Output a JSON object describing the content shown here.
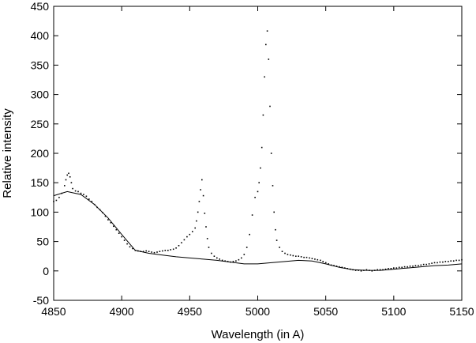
{
  "chart_data": {
    "type": "scatter",
    "title": "",
    "xlabel": "Wavelength (in A)",
    "ylabel": "Relative intensity",
    "xlim": [
      4850,
      5150
    ],
    "ylim": [
      -50,
      450
    ],
    "xticks": [
      4850,
      4900,
      4950,
      5000,
      5050,
      5100,
      5150
    ],
    "yticks": [
      -50,
      0,
      50,
      100,
      150,
      200,
      250,
      300,
      350,
      400,
      450
    ],
    "grid": false,
    "legend": "none",
    "series": [
      {
        "kind": "points",
        "color": "#000000",
        "points": [
          [
            4850,
            118
          ],
          [
            4852,
            120
          ],
          [
            4854,
            125
          ],
          [
            4856,
            132
          ],
          [
            4858,
            145
          ],
          [
            4859,
            155
          ],
          [
            4860,
            163
          ],
          [
            4861,
            166
          ],
          [
            4862,
            160
          ],
          [
            4863,
            150
          ],
          [
            4864,
            140
          ],
          [
            4866,
            136
          ],
          [
            4868,
            135
          ],
          [
            4870,
            132
          ],
          [
            4872,
            130
          ],
          [
            4874,
            127
          ],
          [
            4876,
            122
          ],
          [
            4878,
            118
          ],
          [
            4880,
            113
          ],
          [
            4882,
            108
          ],
          [
            4884,
            104
          ],
          [
            4886,
            99
          ],
          [
            4888,
            93
          ],
          [
            4890,
            87
          ],
          [
            4892,
            82
          ],
          [
            4894,
            76
          ],
          [
            4896,
            70
          ],
          [
            4898,
            64
          ],
          [
            4900,
            58
          ],
          [
            4902,
            52
          ],
          [
            4904,
            46
          ],
          [
            4906,
            41
          ],
          [
            4908,
            38
          ],
          [
            4910,
            35
          ],
          [
            4912,
            34
          ],
          [
            4914,
            33
          ],
          [
            4916,
            33
          ],
          [
            4918,
            34
          ],
          [
            4920,
            33
          ],
          [
            4922,
            32
          ],
          [
            4924,
            31
          ],
          [
            4926,
            32
          ],
          [
            4928,
            33
          ],
          [
            4930,
            34
          ],
          [
            4932,
            35
          ],
          [
            4934,
            35
          ],
          [
            4936,
            36
          ],
          [
            4938,
            37
          ],
          [
            4940,
            39
          ],
          [
            4942,
            43
          ],
          [
            4944,
            48
          ],
          [
            4946,
            53
          ],
          [
            4948,
            58
          ],
          [
            4950,
            62
          ],
          [
            4952,
            67
          ],
          [
            4954,
            73
          ],
          [
            4955,
            85
          ],
          [
            4956,
            100
          ],
          [
            4957,
            118
          ],
          [
            4958,
            138
          ],
          [
            4959,
            155
          ],
          [
            4960,
            128
          ],
          [
            4961,
            98
          ],
          [
            4962,
            75
          ],
          [
            4963,
            55
          ],
          [
            4964,
            40
          ],
          [
            4966,
            30
          ],
          [
            4968,
            25
          ],
          [
            4970,
            22
          ],
          [
            4972,
            20
          ],
          [
            4974,
            18
          ],
          [
            4976,
            17
          ],
          [
            4978,
            16
          ],
          [
            4980,
            15
          ],
          [
            4982,
            16
          ],
          [
            4984,
            17
          ],
          [
            4986,
            19
          ],
          [
            4988,
            22
          ],
          [
            4990,
            28
          ],
          [
            4992,
            40
          ],
          [
            4994,
            62
          ],
          [
            4996,
            95
          ],
          [
            4998,
            125
          ],
          [
            5000,
            135
          ],
          [
            5001,
            150
          ],
          [
            5002,
            175
          ],
          [
            5003,
            210
          ],
          [
            5004,
            265
          ],
          [
            5005,
            330
          ],
          [
            5006,
            385
          ],
          [
            5007,
            408
          ],
          [
            5008,
            360
          ],
          [
            5009,
            280
          ],
          [
            5010,
            200
          ],
          [
            5011,
            145
          ],
          [
            5012,
            100
          ],
          [
            5013,
            70
          ],
          [
            5014,
            52
          ],
          [
            5016,
            40
          ],
          [
            5018,
            33
          ],
          [
            5020,
            30
          ],
          [
            5022,
            28
          ],
          [
            5024,
            27
          ],
          [
            5026,
            26
          ],
          [
            5028,
            25
          ],
          [
            5030,
            25
          ],
          [
            5032,
            24
          ],
          [
            5034,
            23
          ],
          [
            5036,
            23
          ],
          [
            5038,
            22
          ],
          [
            5040,
            21
          ],
          [
            5042,
            20
          ],
          [
            5044,
            19
          ],
          [
            5046,
            18
          ],
          [
            5048,
            16
          ],
          [
            5050,
            14
          ],
          [
            5052,
            12
          ],
          [
            5054,
            10
          ],
          [
            5056,
            9
          ],
          [
            5058,
            8
          ],
          [
            5060,
            7
          ],
          [
            5062,
            6
          ],
          [
            5064,
            5
          ],
          [
            5066,
            4
          ],
          [
            5068,
            3
          ],
          [
            5070,
            2
          ],
          [
            5072,
            1
          ],
          [
            5074,
            1
          ],
          [
            5076,
            0
          ],
          [
            5078,
            1
          ],
          [
            5080,
            2
          ],
          [
            5082,
            1
          ],
          [
            5084,
            0
          ],
          [
            5086,
            1
          ],
          [
            5088,
            2
          ],
          [
            5090,
            2
          ],
          [
            5092,
            2
          ],
          [
            5094,
            3
          ],
          [
            5096,
            4
          ],
          [
            5098,
            4
          ],
          [
            5100,
            5
          ],
          [
            5102,
            5
          ],
          [
            5104,
            6
          ],
          [
            5106,
            6
          ],
          [
            5108,
            7
          ],
          [
            5110,
            7
          ],
          [
            5112,
            8
          ],
          [
            5114,
            8
          ],
          [
            5116,
            9
          ],
          [
            5118,
            9
          ],
          [
            5120,
            10
          ],
          [
            5122,
            11
          ],
          [
            5124,
            11
          ],
          [
            5126,
            12
          ],
          [
            5128,
            13
          ],
          [
            5130,
            14
          ],
          [
            5132,
            14
          ],
          [
            5134,
            15
          ],
          [
            5136,
            15
          ],
          [
            5138,
            16
          ],
          [
            5140,
            16
          ],
          [
            5142,
            17
          ],
          [
            5144,
            17
          ],
          [
            5146,
            18
          ],
          [
            5148,
            18
          ],
          [
            5150,
            19
          ]
        ]
      },
      {
        "kind": "line",
        "color": "#000000",
        "points": [
          [
            4850,
            128
          ],
          [
            4860,
            135
          ],
          [
            4870,
            130
          ],
          [
            4880,
            113
          ],
          [
            4890,
            90
          ],
          [
            4900,
            62
          ],
          [
            4910,
            35
          ],
          [
            4920,
            30
          ],
          [
            4930,
            27
          ],
          [
            4940,
            24
          ],
          [
            4950,
            22
          ],
          [
            4960,
            20
          ],
          [
            4970,
            18
          ],
          [
            4980,
            15
          ],
          [
            4990,
            12
          ],
          [
            5000,
            12
          ],
          [
            5010,
            14
          ],
          [
            5020,
            16
          ],
          [
            5030,
            18
          ],
          [
            5040,
            17
          ],
          [
            5050,
            12
          ],
          [
            5060,
            6
          ],
          [
            5070,
            2
          ],
          [
            5080,
            1
          ],
          [
            5090,
            1
          ],
          [
            5100,
            3
          ],
          [
            5110,
            5
          ],
          [
            5120,
            7
          ],
          [
            5130,
            9
          ],
          [
            5140,
            10
          ],
          [
            5150,
            12
          ]
        ]
      }
    ]
  }
}
